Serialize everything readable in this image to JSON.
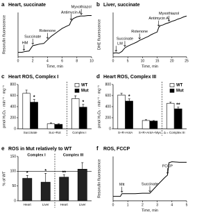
{
  "chart_data": [
    {
      "panel": "a",
      "type": "line",
      "title": "Heart, succinate",
      "ylabel": "Resorufin fluorescence",
      "xlabel": "Time, min",
      "x": [
        0,
        0.5,
        1,
        1.5,
        2,
        2.5,
        3,
        3.5,
        4,
        4.5,
        5,
        5.5,
        6,
        6.5,
        7,
        7.2,
        7.5,
        8,
        8.5,
        9,
        9.5,
        10
      ],
      "values": [
        10,
        10,
        12,
        13,
        25,
        27,
        29,
        30,
        38,
        46,
        52,
        58,
        64,
        68,
        72,
        80,
        86,
        90,
        92,
        92,
        93,
        93
      ],
      "color": "#000",
      "xlim": [
        0,
        10
      ],
      "xticks": [
        0,
        2,
        4,
        6,
        8,
        10
      ],
      "ylim": [
        0,
        100
      ],
      "annotations": [
        {
          "text": "HM",
          "x": 0.8
        },
        {
          "text": "Succinate",
          "x": 2
        },
        {
          "text": "Rotenone",
          "x": 4
        },
        {
          "text": "Antimycin A",
          "x": 7.2
        },
        {
          "text": "Myxothiazol",
          "x": 8.6
        }
      ]
    },
    {
      "panel": "b",
      "type": "line",
      "title": "Liver, succinate",
      "ylabel": "DHE fluorescence",
      "xlabel": "Time, min",
      "x": [
        0,
        1,
        2,
        3,
        4,
        5,
        6,
        7,
        8,
        9,
        10,
        11,
        12,
        13,
        14,
        15,
        15.5,
        16,
        17,
        18,
        19,
        20,
        21,
        22,
        23,
        24,
        25
      ],
      "values": [
        8,
        9,
        8,
        12,
        20,
        24,
        27,
        30,
        33,
        37,
        40,
        43,
        46,
        50,
        53,
        56,
        66,
        70,
        72,
        75,
        77,
        80,
        82,
        85,
        87,
        90,
        92
      ],
      "color": "#000",
      "xlim": [
        0,
        25
      ],
      "xticks": [
        0,
        5,
        10,
        15,
        20,
        25
      ],
      "ylim": [
        0,
        100
      ],
      "annotations": [
        {
          "text": "LM",
          "x": 1
        },
        {
          "text": "Succinate",
          "x": 4
        },
        {
          "text": "Rotenone",
          "x": 9
        },
        {
          "text": "Antimycin A",
          "x": 15.5
        },
        {
          "text": "Myxothiazol",
          "x": 19
        }
      ]
    },
    {
      "panel": "c",
      "type": "bar",
      "title": "Heart ROS, Complex I",
      "ylabel": "pmol H₂O₂ · min⁻¹ · mg⁻¹",
      "categories": [
        "Succinate",
        "Suc+Rot",
        "Complex I"
      ],
      "divider": true,
      "series": [
        {
          "name": "WT",
          "color": "#ffffff",
          "values": [
            640,
            90,
            545
          ],
          "errors": [
            60,
            15,
            50
          ]
        },
        {
          "name": "Mut",
          "color": "#000000",
          "values": [
            480,
            80,
            390
          ],
          "errors": [
            50,
            10,
            50
          ],
          "significance": [
            "*",
            null,
            "*"
          ]
        }
      ],
      "ylim": [
        0,
        800
      ],
      "yticks": [
        0,
        200,
        400,
        600,
        800
      ],
      "legend": "top-right"
    },
    {
      "panel": "d",
      "type": "bar",
      "title": "Heart ROS, Complex III",
      "ylabel": "pmol H₂O₂ · min⁻¹ · mg⁻¹",
      "categories": [
        "S+R+AntA",
        "S+R+AntA+Myx",
        "Δ = Complex III"
      ],
      "divider": true,
      "series": [
        {
          "name": "WT",
          "color": "#ffffff",
          "values": [
            610,
            150,
            460
          ],
          "errors": [
            30,
            15,
            20
          ]
        },
        {
          "name": "Mut",
          "color": "#000000",
          "values": [
            500,
            140,
            360
          ],
          "errors": [
            40,
            10,
            30
          ],
          "significance": [
            "*",
            null,
            "**"
          ]
        }
      ],
      "ylim": [
        0,
        800
      ],
      "yticks": [
        0,
        200,
        400,
        600,
        800
      ],
      "legend": "top-right"
    },
    {
      "panel": "e",
      "type": "bar",
      "title": "ROS in Mut relatively to WT",
      "ylabel": "% of WT",
      "categories": [
        "Heart",
        "Liver",
        "Heart",
        "Liver"
      ],
      "groups": [
        "Complex I",
        "Complex III"
      ],
      "divider": true,
      "series": [
        {
          "color": "#222222",
          "values": [
            76,
            63,
            80,
            107
          ],
          "errors": [
            10,
            30,
            8,
            22
          ],
          "significance": [
            "*",
            "*",
            "**",
            null
          ]
        }
      ],
      "ylim": [
        0,
        150
      ],
      "yticks": [
        0,
        50,
        100,
        150
      ],
      "refline": 100
    },
    {
      "panel": "f",
      "type": "line",
      "title": "ROS, FCCP",
      "ylabel": "Resorufin fluorescence",
      "xlabel": "Time, min",
      "x": [
        0,
        0.5,
        0.6,
        1,
        1.5,
        2,
        2.5,
        3,
        3.5,
        3.7,
        3.8,
        4,
        4.5,
        5
      ],
      "values": [
        10,
        10,
        16,
        16,
        16,
        17,
        17,
        35,
        52,
        58,
        86,
        88,
        87,
        87
      ],
      "color": "#000",
      "xlim": [
        0,
        5
      ],
      "xticks": [
        0,
        1,
        2,
        3,
        4,
        5
      ],
      "ylim": [
        0,
        100
      ],
      "annotations": [
        {
          "text": "Mit",
          "x": 0.6
        },
        {
          "text": "Succinate",
          "x": 2.5
        },
        {
          "text": "FCCP",
          "x": 3.7
        }
      ]
    }
  ]
}
